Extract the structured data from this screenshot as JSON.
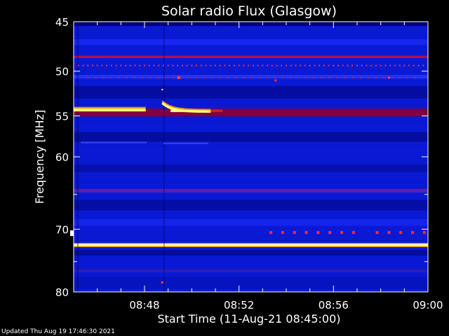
{
  "chart_data": {
    "type": "heatmap",
    "title": "Solar radio Flux (Glasgow)",
    "xlabel": "Start Time (11-Aug-21 08:45:00)",
    "ylabel": "Frequency [MHz]",
    "x_range_minutes": [
      0,
      15
    ],
    "x_ticks": [
      {
        "minute": 3,
        "label": "08:48"
      },
      {
        "minute": 7,
        "label": "08:52"
      },
      {
        "minute": 11,
        "label": "08:56"
      },
      {
        "minute": 15,
        "label": "09:00"
      }
    ],
    "y_scale": "log",
    "ylim": [
      45,
      80
    ],
    "y_reversed": true,
    "y_ticks_major": [
      {
        "value": 45,
        "label": "45"
      },
      {
        "value": 50,
        "label": "50"
      },
      {
        "value": 55,
        "label": "55"
      },
      {
        "value": 60,
        "label": "60"
      },
      {
        "value": 70,
        "label": "70"
      },
      {
        "value": 80,
        "label": "80"
      }
    ],
    "y_ticks_minor": [
      65,
      75
    ],
    "colormap": [
      "#000060",
      "#0000d8",
      "#2a2af0",
      "#7a1060",
      "#c00000",
      "#ff8000",
      "#ffff60",
      "#ffffff"
    ],
    "background_color": "#0a1ad8",
    "horizontal_bands": [
      {
        "freq": 45.2,
        "width_mhz": 0.4,
        "color": "#000070",
        "opacity": 0.9
      },
      {
        "freq": 47.0,
        "width_mhz": 0.6,
        "color": "#2030ff",
        "opacity": 0.6
      },
      {
        "freq": 48.5,
        "width_mhz": 0.25,
        "color": "#b0104a",
        "opacity": 1
      },
      {
        "freq": 50.6,
        "width_mhz": 0.4,
        "color": "#3040ff",
        "opacity": 0.7
      },
      {
        "freq": 52.3,
        "width_mhz": 1.4,
        "color": "#000070",
        "opacity": 0.5
      },
      {
        "freq": 54.6,
        "width_mhz": 0.9,
        "color": "#800040",
        "opacity": 1
      },
      {
        "freq": 57.5,
        "width_mhz": 1.2,
        "color": "#000060",
        "opacity": 0.45
      },
      {
        "freq": 61.5,
        "width_mhz": 1.0,
        "color": "#000060",
        "opacity": 0.35
      },
      {
        "freq": 64.5,
        "width_mhz": 0.5,
        "color": "#6020b0",
        "opacity": 0.9
      },
      {
        "freq": 66.5,
        "width_mhz": 1.5,
        "color": "#000070",
        "opacity": 0.45
      },
      {
        "freq": 69.0,
        "width_mhz": 1.0,
        "color": "#2030ff",
        "opacity": 0.5
      },
      {
        "freq": 72.4,
        "width_mhz": 0.6,
        "color": "#ffc000",
        "opacity": 1
      },
      {
        "freq": 72.4,
        "width_mhz": 0.25,
        "color": "#ffffe0",
        "opacity": 1
      },
      {
        "freq": 73.6,
        "width_mhz": 0.9,
        "color": "#000060",
        "opacity": 0.5
      },
      {
        "freq": 76.5,
        "width_mhz": 0.4,
        "color": "#4020a0",
        "opacity": 0.8
      },
      {
        "freq": 78.5,
        "width_mhz": 2.0,
        "color": "#0010a0",
        "opacity": 0.4
      }
    ],
    "vertical_streaks": [
      {
        "minute": 0.15,
        "color": "#000060",
        "opacity": 0.4
      },
      {
        "minute": 3.8,
        "color": "#000060",
        "opacity": 0.35
      }
    ],
    "segments": [
      {
        "name": "bright-band-54mhz-left",
        "minute_start": 0,
        "minute_end": 3.05,
        "freq": 54.3,
        "width_mhz": 0.35,
        "color": "#ffff80"
      },
      {
        "name": "bright-band-54mhz-left-edge",
        "minute_start": 0,
        "minute_end": 3.05,
        "freq": 54.05,
        "width_mhz": 0.2,
        "color": "#ff9000"
      },
      {
        "name": "bright-band-54mhz-right",
        "minute_start": 4.1,
        "minute_end": 5.8,
        "freq": 54.4,
        "width_mhz": 0.3,
        "color": "#ffff80"
      },
      {
        "name": "red-tail-54mhz",
        "minute_start": 5.8,
        "minute_end": 6.3,
        "freq": 54.4,
        "width_mhz": 0.3,
        "color": "#d02020"
      },
      {
        "name": "faint-drift-58mhz",
        "minute_start": 0.3,
        "minute_end": 3.1,
        "freq": 58.2,
        "width_mhz": 0.2,
        "color": "#3040ff"
      },
      {
        "name": "faint-drift-58mhz-b",
        "minute_start": 3.8,
        "minute_end": 5.7,
        "freq": 58.3,
        "width_mhz": 0.2,
        "color": "#3040ff"
      }
    ],
    "sweep_curve": {
      "minute_start": 3.75,
      "minute_end": 5.8,
      "freq_start": 53.5,
      "freq_end": 54.5,
      "color": "#ffff80",
      "edge_color": "#ff9000"
    },
    "dot_rows": [
      {
        "freq": 49.4,
        "minute_start": 0.2,
        "minute_end": 14.8,
        "step_minutes": 0.2,
        "color": "#ff3030",
        "size": 2
      },
      {
        "freq": 50.7,
        "minute_start": 0.6,
        "minute_end": 14.6,
        "step_minutes": 0.33,
        "color": "#c02040",
        "size": 2
      },
      {
        "freq": 70.5,
        "minute_start": 8.35,
        "minute_end": 11.9,
        "step_minutes": 0.5,
        "color": "#ff3030",
        "size": 4
      },
      {
        "freq": 70.5,
        "minute_start": 12.85,
        "minute_end": 14.9,
        "step_minutes": 0.5,
        "color": "#ff3030",
        "size": 4
      }
    ],
    "spots": [
      {
        "minute": 4.45,
        "freq": 50.7,
        "color": "#ff4040",
        "size": 4
      },
      {
        "minute": 8.55,
        "freq": 51.0,
        "color": "#ff3030",
        "size": 3
      },
      {
        "minute": 13.35,
        "freq": 50.7,
        "color": "#ff4040",
        "size": 3
      },
      {
        "minute": 3.75,
        "freq": 78.4,
        "color": "#ff4040",
        "size": 3
      },
      {
        "minute": 3.75,
        "freq": 52.0,
        "color": "#ffffff",
        "size": 2
      }
    ],
    "outside_marker": {
      "freq": 70.6,
      "color": "#ffffff"
    }
  },
  "footer": {
    "updated_text": "Updated Thu Aug 19 17:46:30 2021"
  }
}
